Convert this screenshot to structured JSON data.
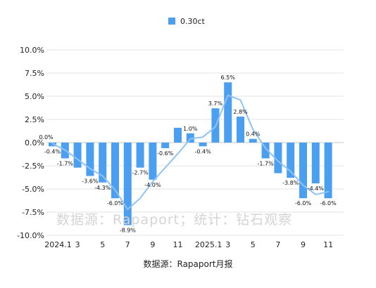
{
  "chart_data": {
    "type": "bar",
    "legend": {
      "label": "0.30ct",
      "position": "top"
    },
    "x_tick_labels": [
      "2024.1",
      "3",
      "5",
      "7",
      "9",
      "11",
      "2025.1",
      "3",
      "5",
      "7",
      "9",
      "11"
    ],
    "y_tick_labels": [
      "10.0%",
      "7.5%",
      "5.0%",
      "2.5%",
      "0.0%",
      "-2.5%",
      "-5.0%",
      "-7.5%",
      "-10.0%"
    ],
    "y_ticks": [
      10,
      7.5,
      5,
      2.5,
      0,
      -2.5,
      -5,
      -7.5,
      -10
    ],
    "ylim": [
      -10,
      10
    ],
    "grid": true,
    "series": [
      {
        "name": "0.30ct",
        "color": "#4a9ff0",
        "values": [
          -0.4,
          -1.7,
          -2.7,
          -3.6,
          -4.3,
          -6.0,
          -8.9,
          -2.7,
          -4.0,
          -0.6,
          1.6,
          1.0,
          -0.4,
          3.7,
          6.5,
          2.8,
          0.4,
          -1.7,
          -3.3,
          -3.8,
          -6.0,
          -4.4,
          -6.0
        ],
        "labels": [
          "-0.4%",
          "-1.7%",
          "",
          "-3.6%",
          "-4.3%",
          "-6.0%",
          "-8.9%",
          "-2.7%",
          "-4.0%",
          "-0.6%",
          "",
          "1.0%",
          "-0.4%",
          "3.7%",
          "6.5%",
          "2.8%",
          "0.4%",
          "-1.7%",
          "",
          "-3.8%",
          "-6.0%",
          "-4.4%",
          "-6.0%"
        ]
      }
    ],
    "trendline": {
      "color": "#8fc3f5",
      "values": [
        -0.1,
        -0.8,
        -1.8,
        -2.8,
        -3.6,
        -5.1,
        -7.2,
        -6.0,
        -4.2,
        -2.7,
        -1.2,
        0.4,
        0.6,
        1.7,
        5.1,
        4.6,
        1.4,
        -0.6,
        -2.0,
        -3.1,
        -4.6,
        -5.6,
        -5.3
      ]
    },
    "extra_annotations": [
      {
        "text": "0.0%"
      }
    ]
  },
  "watermark": "数据源：Rapaport；统计：钻石观察",
  "source": "数据源：Rapaport月报"
}
